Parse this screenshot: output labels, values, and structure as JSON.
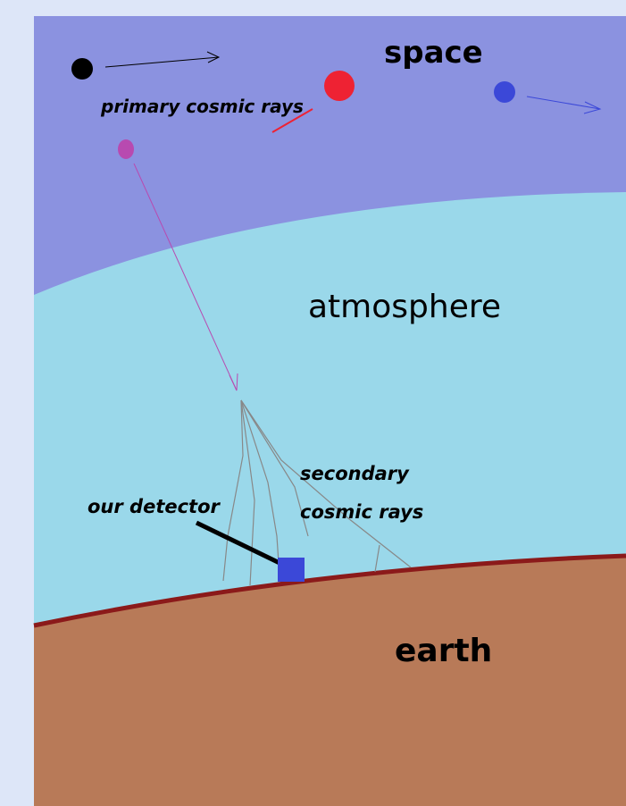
{
  "labels": {
    "space": "space",
    "primary": "primary cosmic rays",
    "atmosphere": "atmosphere",
    "secondary_line1": "secondary",
    "secondary_line2": "cosmic rays",
    "detector": "our detector",
    "earth": "earth"
  }
}
